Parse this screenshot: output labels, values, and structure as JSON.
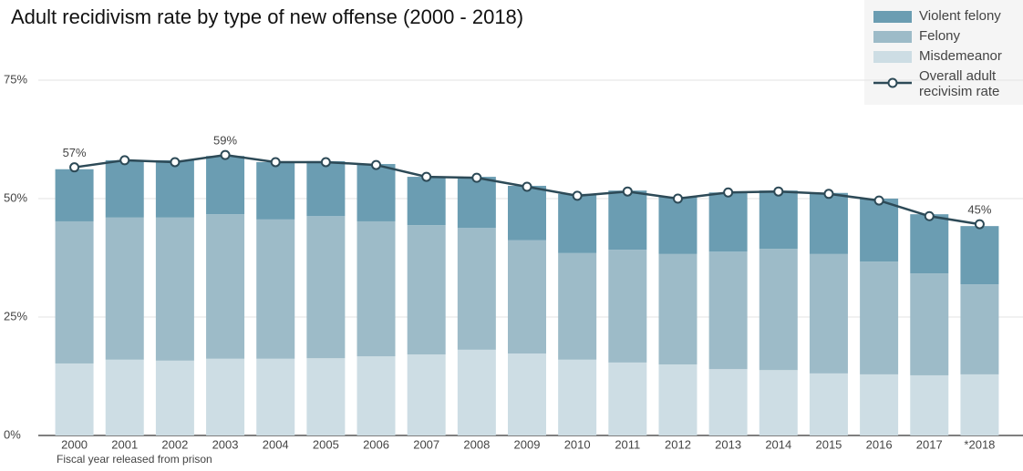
{
  "chart_data": {
    "type": "stacked_bar_line",
    "title": "Adult recidivism rate by type of new offense (2000 - 2018)",
    "x_label": "Fiscal year released from prison",
    "categories": [
      "2000",
      "2001",
      "2002",
      "2003",
      "2004",
      "2005",
      "2006",
      "2007",
      "2008",
      "2009",
      "2010",
      "2011",
      "2012",
      "2013",
      "2014",
      "2015",
      "2016",
      "2017",
      "*2018"
    ],
    "series": [
      {
        "name": "Misdemeanor",
        "color": "#cddde4",
        "values": [
          15.2,
          16.0,
          15.8,
          16.2,
          16.2,
          16.3,
          16.7,
          17.1,
          18.1,
          17.3,
          16.0,
          15.4,
          15.0,
          14.0,
          13.8,
          13.1,
          12.9,
          12.7,
          12.9
        ]
      },
      {
        "name": "Felony",
        "color": "#9dbbc8",
        "values": [
          30.0,
          30.0,
          30.2,
          30.5,
          29.4,
          30.0,
          28.5,
          27.3,
          25.7,
          23.9,
          22.5,
          23.8,
          23.3,
          24.8,
          25.6,
          25.2,
          23.8,
          21.5,
          19.0
        ]
      },
      {
        "name": "Violent felony",
        "color": "#6b9db2",
        "values": [
          11.0,
          12.1,
          12.1,
          12.3,
          12.1,
          11.6,
          12.1,
          10.2,
          10.8,
          11.5,
          12.5,
          12.5,
          12.1,
          12.5,
          12.3,
          12.9,
          13.3,
          12.5,
          12.3
        ]
      },
      {
        "name": "Overall adult recivisim rate",
        "color": "#2d4a57",
        "kind": "line",
        "values": [
          56.6,
          58.1,
          57.7,
          59.2,
          57.7,
          57.7,
          57.1,
          54.6,
          54.4,
          52.5,
          50.6,
          51.5,
          50.0,
          51.3,
          51.5,
          51.0,
          49.6,
          46.3,
          44.6
        ],
        "value_labels": [
          "57%",
          null,
          null,
          "59%",
          null,
          null,
          null,
          null,
          null,
          null,
          null,
          null,
          null,
          null,
          null,
          null,
          null,
          null,
          "45%"
        ]
      }
    ],
    "legend_order": [
      2,
      1,
      0,
      3
    ],
    "legend": "top-right",
    "ylim": [
      0,
      75
    ],
    "yticks": [
      {
        "value": 0,
        "label": "0%"
      },
      {
        "value": 25,
        "label": "25%"
      },
      {
        "value": 50,
        "label": "50%"
      },
      {
        "value": 75,
        "label": "75%"
      }
    ],
    "grid": true
  }
}
